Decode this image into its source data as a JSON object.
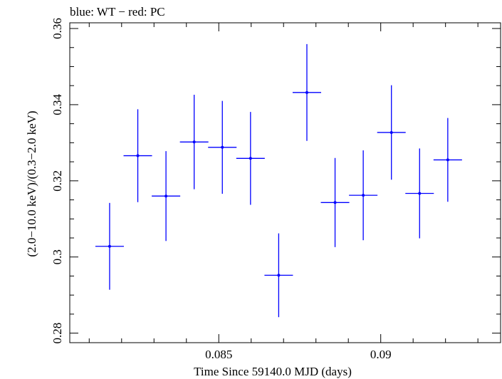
{
  "chart_data": {
    "type": "scatter",
    "title": "blue: WT − red: PC",
    "xlabel": "Time Since 59140.0 MJD (days)",
    "ylabel": "(2.0−10.0 keV)/(0.3−2.0 keV)",
    "xlim": [
      0.0804,
      0.0937
    ],
    "ylim": [
      0.2775,
      0.3615
    ],
    "x_ticks": [
      0.085,
      0.09
    ],
    "x_tick_labels": [
      "0.085",
      "0.09"
    ],
    "y_ticks": [
      0.28,
      0.3,
      0.32,
      0.34,
      0.36
    ],
    "y_tick_labels": [
      "0.28",
      "0.3",
      "0.32",
      "0.34",
      "0.36"
    ],
    "grid": false,
    "series": [
      {
        "name": "WT",
        "color": "#0000ff",
        "points": [
          {
            "x": 0.08163,
            "y": 0.3028,
            "xerr": 0.00044,
            "yerr": 0.0114
          },
          {
            "x": 0.0825,
            "y": 0.3266,
            "xerr": 0.00044,
            "yerr": 0.0122
          },
          {
            "x": 0.08337,
            "y": 0.316,
            "xerr": 0.00044,
            "yerr": 0.0118
          },
          {
            "x": 0.08424,
            "y": 0.3302,
            "xerr": 0.00044,
            "yerr": 0.0124
          },
          {
            "x": 0.08511,
            "y": 0.3288,
            "xerr": 0.00044,
            "yerr": 0.0122
          },
          {
            "x": 0.08598,
            "y": 0.3259,
            "xerr": 0.00044,
            "yerr": 0.0122
          },
          {
            "x": 0.08685,
            "y": 0.2952,
            "xerr": 0.00044,
            "yerr": 0.011
          },
          {
            "x": 0.08772,
            "y": 0.3432,
            "xerr": 0.00044,
            "yerr": 0.0127
          },
          {
            "x": 0.08859,
            "y": 0.3143,
            "xerr": 0.00044,
            "yerr": 0.0117
          },
          {
            "x": 0.08946,
            "y": 0.3162,
            "xerr": 0.00044,
            "yerr": 0.0118
          },
          {
            "x": 0.09033,
            "y": 0.3327,
            "xerr": 0.00044,
            "yerr": 0.0124
          },
          {
            "x": 0.0912,
            "y": 0.3167,
            "xerr": 0.00044,
            "yerr": 0.0118
          },
          {
            "x": 0.09207,
            "y": 0.3255,
            "xerr": 0.00044,
            "yerr": 0.011
          }
        ]
      }
    ]
  }
}
